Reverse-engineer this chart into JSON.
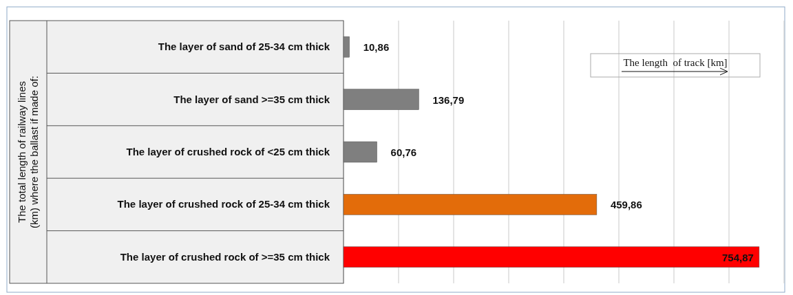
{
  "chart_data": {
    "type": "bar",
    "orientation": "horizontal",
    "categories": [
      "The layer of sand of 25-34 cm thick",
      "The layer of sand >=35 cm thick",
      "The layer of crushed rock of <25 cm thick",
      "The layer of crushed rock of 25-34 cm thick",
      "The layer of crushed rock of >=35 cm thick"
    ],
    "values": [
      10.86,
      136.79,
      60.76,
      459.86,
      754.87
    ],
    "colors": [
      "#7f7f7f",
      "#7f7f7f",
      "#7f7f7f",
      "#e36c0a",
      "#ff0000"
    ],
    "value_labels": [
      "10,86",
      "136,79",
      "60,76",
      "459,86",
      "754,87"
    ],
    "xlim": [
      0,
      800
    ],
    "xticks": [
      {
        "value": 0,
        "label": null
      },
      {
        "value": 100,
        "label": null
      },
      {
        "value": 200,
        "label": null
      },
      {
        "value": 300,
        "label": null
      },
      {
        "value": 400,
        "label": null
      },
      {
        "value": 500,
        "label": null
      },
      {
        "value": 600,
        "label": null
      },
      {
        "value": 700,
        "label": null
      },
      {
        "value": 800,
        "label": null
      }
    ],
    "grid": "x",
    "annotations": [
      "The length  of track [km]",
      "The total length of railway lines (km) where the ballast if made of:"
    ]
  }
}
